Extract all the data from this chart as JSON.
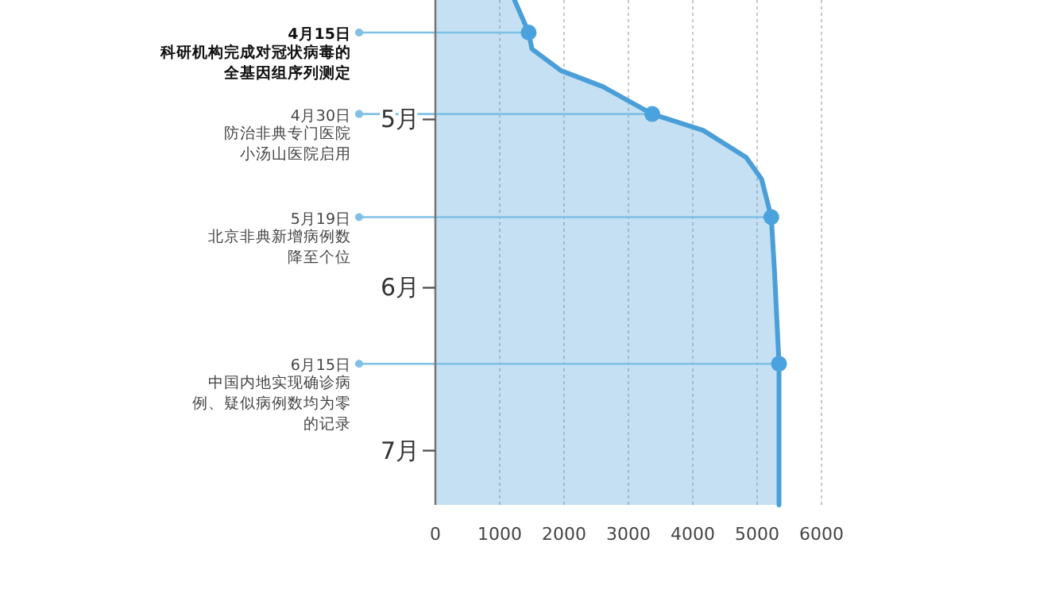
{
  "chart_data": {
    "type": "area",
    "orientation": "horizontal",
    "grid": "x",
    "xlim": [
      0,
      6000
    ],
    "xticks": [
      0,
      1000,
      2000,
      3000,
      4000,
      5000,
      6000
    ],
    "ylim": [
      "--07-11",
      "--04-09"
    ],
    "yticks": [
      {
        "value": "--05-01",
        "label": "5月"
      },
      {
        "value": "--06-01",
        "label": "6月"
      },
      {
        "value": "--07-01",
        "label": "7月"
      }
    ],
    "x": [
      "--04-09",
      "--04-15",
      "--04-18",
      "--04-22",
      "--04-25",
      "--04-30",
      "--05-03",
      "--05-08",
      "--05-12",
      "--05-19",
      "--05-29",
      "--06-15",
      "--07-11"
    ],
    "series": [
      {
        "color": "#4a9fd8",
        "values": [
          1230,
          1450,
          1500,
          1950,
          2610,
          3370,
          4160,
          4830,
          5070,
          5220,
          5270,
          5340,
          5340
        ]
      },
      {
        "type": "scatter",
        "marker": "circle",
        "color": "#4aa3df",
        "x": [
          "--04-15",
          "--04-30",
          "--05-19",
          "--06-15"
        ],
        "values": [
          1450,
          3370,
          5220,
          5340
        ]
      }
    ],
    "ref_lines": [
      {
        "axis": "y",
        "value": "--04-15",
        "label": "4月15日",
        "color": "#7fc0e6"
      },
      {
        "axis": "y",
        "value": "--04-30",
        "label": "4月30日",
        "color": "#7fc0e6"
      },
      {
        "axis": "y",
        "value": "--05-19",
        "label": "5月19日",
        "color": "#7fc0e6"
      },
      {
        "axis": "y",
        "value": "--06-15",
        "label": "6月15日",
        "color": "#7fc0e6"
      }
    ],
    "annotations": [
      "科研机构完成对冠状病毒的全基因组序列测定",
      "防治非典专门医院小汤山医院启用",
      "北京非典新增病例数降至个位",
      "中国内地实现确诊病例、疑似病例数均为零的记录"
    ]
  }
}
